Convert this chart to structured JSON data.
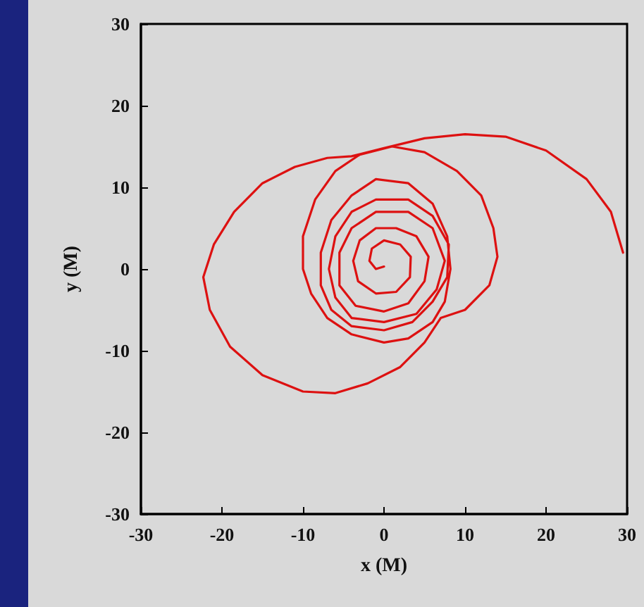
{
  "chart_data": {
    "type": "line",
    "xlabel": "x (M)",
    "ylabel": "y (M)",
    "xlim": [
      -30,
      30
    ],
    "ylim": [
      -30,
      30
    ],
    "xticks": [
      -30,
      -20,
      -10,
      0,
      10,
      20,
      30
    ],
    "yticks": [
      -30,
      -20,
      -10,
      0,
      10,
      20,
      30
    ],
    "marker": "none",
    "line_style": "solid",
    "series": [
      {
        "color": "#dd1111",
        "x": [
          29.5,
          28,
          25,
          20,
          15,
          10,
          5,
          0,
          -4,
          -7,
          -11,
          -15,
          -18.5,
          -21,
          -22.3,
          -21.5,
          -19,
          -15,
          -10,
          -6,
          -2,
          2,
          5,
          7,
          10,
          13,
          14,
          13.5,
          12,
          9,
          5,
          1,
          -3,
          -6,
          -8.5,
          -10,
          -10,
          -9,
          -7,
          -4,
          0,
          3,
          6,
          7.5,
          8.2,
          7.8,
          6,
          3,
          -1,
          -4,
          -6.5,
          -7.8,
          -7.8,
          -6.5,
          -4,
          0,
          3.5,
          6,
          7.8,
          8,
          6,
          3,
          -1,
          -4,
          -6,
          -6.8,
          -6,
          -4,
          0,
          4,
          6.5,
          7.5,
          6,
          3,
          -1,
          -4,
          -5.5,
          -5.5,
          -3.5,
          0,
          3,
          5,
          5.5,
          4,
          1.5,
          -1,
          -3,
          -3.8,
          -3.2,
          -1,
          1.5,
          3.2,
          3.3,
          2,
          0,
          -1.5,
          -1.8,
          -1,
          0
        ],
        "values": [
          2,
          7,
          11,
          14.5,
          16.2,
          16.5,
          16,
          14.8,
          13.8,
          13.6,
          12.5,
          10.5,
          7,
          3,
          -1,
          -5,
          -9.5,
          -13,
          -15,
          -15.2,
          -14,
          -12,
          -9,
          -6,
          -5,
          -2,
          1.5,
          5,
          9,
          12,
          14.3,
          15,
          14,
          12,
          8.5,
          4,
          0,
          -3,
          -6,
          -8,
          -9,
          -8.5,
          -6.5,
          -4,
          0,
          4,
          8,
          10.5,
          11,
          9,
          6,
          2,
          -2,
          -5,
          -7,
          -7.5,
          -6.5,
          -4,
          -1,
          3,
          6.5,
          8.5,
          8.5,
          7,
          4,
          0,
          -3.5,
          -6,
          -6.5,
          -5.5,
          -2.5,
          1,
          5,
          7,
          7,
          5,
          2,
          -2,
          -4.5,
          -5.2,
          -4.2,
          -1.5,
          1.5,
          4,
          5,
          5,
          3.5,
          1,
          -1.5,
          -3,
          -2.8,
          -1,
          1.5,
          3,
          3.5,
          2.5,
          1,
          0,
          0.3
        ]
      }
    ]
  }
}
